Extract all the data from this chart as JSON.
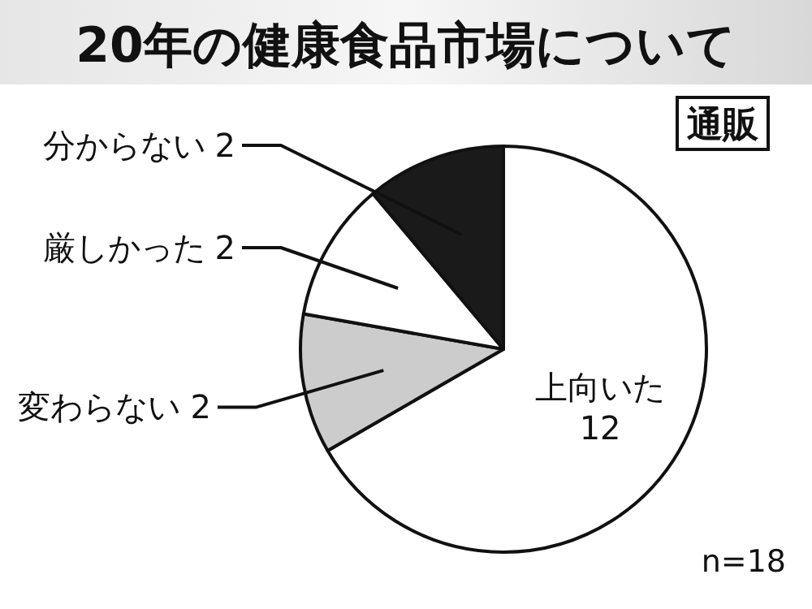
{
  "chart_data": {
    "type": "pie",
    "title": "20年の健康食品市場について",
    "categories": [
      "上向いた",
      "変わらない",
      "厳しかった",
      "分からない"
    ],
    "values": [
      12,
      2,
      2,
      2
    ],
    "colors": [
      "#ffffff",
      "#cccccc",
      "#ffffff",
      "#1a1a1a"
    ],
    "data_labels": true,
    "annotations": [
      "通販",
      "n=18"
    ]
  }
}
